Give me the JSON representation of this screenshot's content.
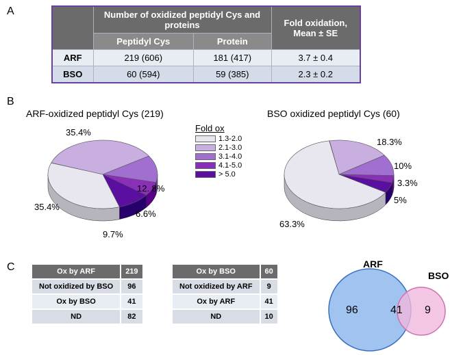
{
  "panelA": {
    "label": "A",
    "table": {
      "border_color": "#6a3fa0",
      "header_bg": "#6b6b6b",
      "sub_bg": "#8a8a8a",
      "row_bg_even": "#e8ecf3",
      "row_bg_odd": "#d3dce8",
      "header_group1": "Number of oxidized peptidyl Cys and proteins",
      "header_group2": "Fold oxidation, Mean ± SE",
      "sub1": "Peptidyl Cys",
      "sub2": "Protein",
      "rows": [
        {
          "label": "ARF",
          "c1": "219 (606)",
          "c2": "181 (417)",
          "c3": "3.7  ±  0.4"
        },
        {
          "label": "BSO",
          "c1": "60 (594)",
          "c2": "59 (385)",
          "c3": "2.3  ±  0.2"
        }
      ]
    }
  },
  "panelB": {
    "label": "B",
    "titleLeft": "ARF-oxidized peptidyl Cys (219)",
    "titleRight": "BSO oxidized peptidyl Cys (60)",
    "legend": {
      "title": "Fold ox",
      "items": [
        {
          "label": "1.3-2.0",
          "color": "#e8e6ee"
        },
        {
          "label": "2.1-3.0",
          "color": "#c9aee0"
        },
        {
          "label": "3.1-4.0",
          "color": "#a06fd0"
        },
        {
          "label": "4.1-5.0",
          "color": "#8a2fb8"
        },
        {
          "label": "> 5.0",
          "color": "#5a0fa0"
        }
      ]
    },
    "leftPie": {
      "slices": [
        {
          "pct": 35.4,
          "color": "#e8e6ee",
          "label": "35.4%"
        },
        {
          "pct": 35.4,
          "color": "#c9aee0",
          "label": "35.4%"
        },
        {
          "pct": 12.8,
          "color": "#a06fd0",
          "label": "12. 8%"
        },
        {
          "pct": 6.6,
          "color": "#8a2fb8",
          "label": "6.6%"
        },
        {
          "pct": 9.7,
          "color": "#5a0fa0",
          "label": "9.7%"
        }
      ]
    },
    "rightPie": {
      "slices": [
        {
          "pct": 63.3,
          "color": "#e8e6ee",
          "label": "63.3%"
        },
        {
          "pct": 18.3,
          "color": "#c9aee0",
          "label": "18.3%"
        },
        {
          "pct": 10.0,
          "color": "#a06fd0",
          "label": "10%"
        },
        {
          "pct": 3.3,
          "color": "#8a2fb8",
          "label": "3.3%"
        },
        {
          "pct": 5.0,
          "color": "#5a0fa0",
          "label": "5%"
        }
      ]
    }
  },
  "panelC": {
    "label": "C",
    "table_head_bg": "#6b6b6b",
    "table_row_bg1": "#d8dce4",
    "table_row_bg2": "#e8ecf3",
    "left": {
      "head": "Ox by ARF",
      "headN": "219",
      "r1": "Not oxidized by BSO",
      "r1n": "96",
      "r2": "Ox by  BSO",
      "r2n": "41",
      "r3": "ND",
      "r3n": "82"
    },
    "right": {
      "head": "Ox by BSO",
      "headN": "60",
      "r1": "Not oxidized by ARF",
      "r1n": "9",
      "r2": "Ox by ARF",
      "r2n": "41",
      "r3": "ND",
      "r3n": "10"
    },
    "venn": {
      "arf_label": "ARF",
      "bso_label": "BSO",
      "arf_color": "#8fb8ec",
      "bso_color": "#f0b8dc",
      "arf_stroke": "#3a6fc0",
      "bso_stroke": "#d070b0",
      "left_n": "96",
      "mid_n": "41",
      "right_n": "9"
    }
  }
}
